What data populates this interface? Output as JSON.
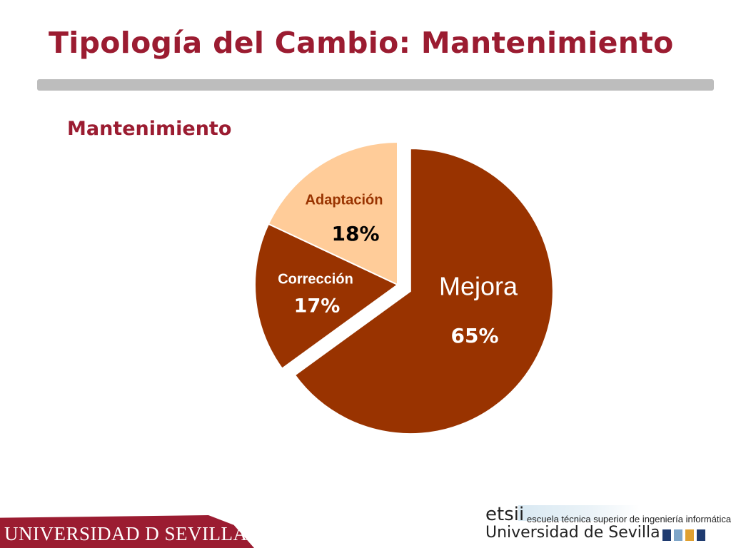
{
  "title": "Tipología del Cambio: Mantenimiento",
  "subtitle": "Mantenimiento",
  "chart_data": {
    "type": "pie",
    "title": "",
    "slices": [
      {
        "label": "Mejora",
        "value": 65,
        "value_label": "65%",
        "color": "#993300",
        "exploded": true
      },
      {
        "label": "Corrección",
        "value": 17,
        "value_label": "17%",
        "color": "#993300",
        "exploded": false
      },
      {
        "label": "Adaptación",
        "value": 18,
        "value_label": "18%",
        "color": "#ffcc99",
        "exploded": false
      }
    ],
    "start": "12 o'clock",
    "direction": "clockwise"
  },
  "footer": {
    "university_logo_text": "UNIVERSIDAD D SEVILLA",
    "etsii_word": "etsii",
    "etsii_full": "escuela técnica superior de ingeniería informática",
    "etsii_university": "Universidad de Sevilla"
  },
  "colors": {
    "title": "#9b1c31",
    "divider": "#bdbdbd",
    "slice_dark": "#993300",
    "slice_light": "#ffcc99",
    "outline": "#ffffff"
  }
}
